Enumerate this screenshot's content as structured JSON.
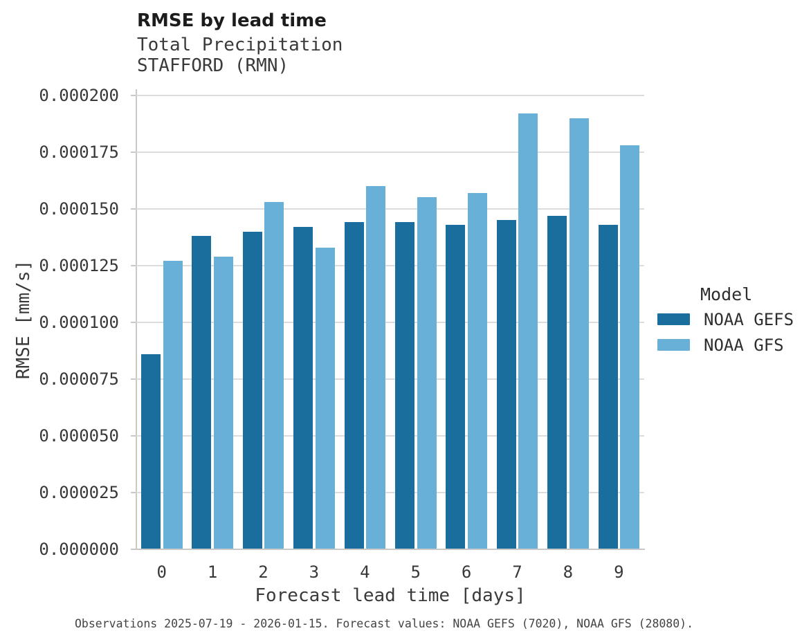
{
  "chart_data": {
    "type": "bar",
    "title": "RMSE by lead time",
    "subtitle1": "Total Precipitation",
    "subtitle2": "STAFFORD (RMN)",
    "xlabel": "Forecast lead time [days]",
    "ylabel": "RMSE [mm/s]",
    "categories": [
      "0",
      "1",
      "2",
      "3",
      "4",
      "5",
      "6",
      "7",
      "8",
      "9"
    ],
    "series": [
      {
        "name": "NOAA GEFS",
        "color": "#1A6E9E",
        "values": [
          8.6e-05,
          0.000138,
          0.00014,
          0.000142,
          0.000144,
          0.000144,
          0.000143,
          0.000145,
          0.000147,
          0.000143
        ]
      },
      {
        "name": "NOAA GFS",
        "color": "#69B0D9",
        "values": [
          0.000127,
          0.000129,
          0.000153,
          0.000133,
          0.00016,
          0.000155,
          0.000157,
          0.000192,
          0.00019,
          0.000178
        ]
      }
    ],
    "ylim": [
      0,
      0.0002
    ],
    "ytick_values": [
      0,
      2.5e-05,
      5e-05,
      7.5e-05,
      0.0001,
      0.000125,
      0.00015,
      0.000175,
      0.0002
    ],
    "ytick_labels": [
      "0.000000",
      "0.000025",
      "0.000050",
      "0.000075",
      "0.000100",
      "0.000125",
      "0.000150",
      "0.000175",
      "0.000200"
    ],
    "grid": true,
    "legend": {
      "title": "Model",
      "position": "right",
      "entries": [
        "NOAA GEFS",
        "NOAA GFS"
      ]
    },
    "caption": "Observations 2025-07-19 - 2026-01-15. Forecast values: NOAA GEFS (7020), NOAA GFS (28080)."
  },
  "colors": {
    "gefs_bar": "#1A6E9E",
    "gfs_bar": "#69B0D9",
    "gridline": "#dcdcdc",
    "spine": "#c9c9c9",
    "title_text": "#1c1c1c",
    "tick_text": "#383838"
  }
}
